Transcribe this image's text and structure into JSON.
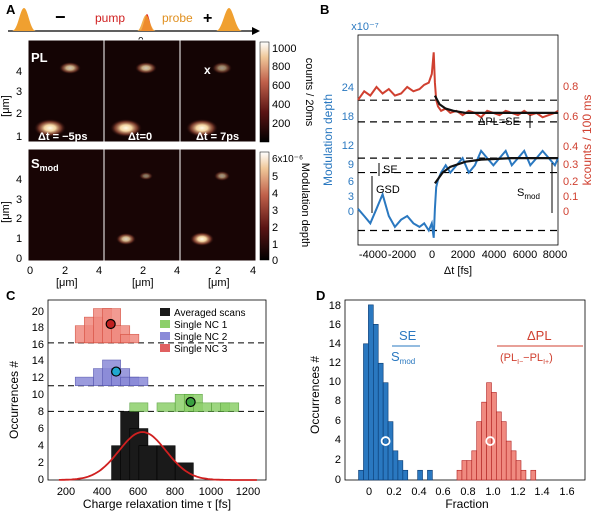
{
  "colors": {
    "orange_pulse": "#f0a030",
    "pump_red": "#e02020",
    "blue": "#2a78c0",
    "red": "#d04030",
    "hist_red": "#f08a80",
    "hist_blue": "#8a8ad8",
    "hist_green": "#8ccf6a",
    "hist_black": "#1a1a1a"
  },
  "panelA": {
    "label": "A",
    "pump": "pump",
    "probe": "probe",
    "minus": "−",
    "plus": "+",
    "zero": "0",
    "pl_label": "PL",
    "smod_label": "S",
    "smod_sub": "mod",
    "x_marker": "x",
    "dt_labels": [
      "Δt = −5ps",
      "Δt=0",
      "Δt = 7ps"
    ],
    "y_axis_label": "[μm]",
    "x_axis_label": "[μm]",
    "y_ticks": [
      "4",
      "3",
      "2",
      "1",
      "0"
    ],
    "x_ticks": [
      "0",
      "2",
      "4",
      "2",
      "4",
      "2",
      "4"
    ],
    "cb_top_ticks": [
      "1000",
      "800",
      "600",
      "400",
      "200"
    ],
    "cb_top_label": "counts / 20ms",
    "cb_bottom_ticks": [
      "6x10⁻⁶",
      "5",
      "4",
      "3",
      "2",
      "1",
      "0"
    ],
    "cb_bottom_label": "Modulation depth"
  },
  "panelB": {
    "label": "B",
    "y_left_label": "Modulation depth",
    "y_right_label": "kcounts / 100 ms",
    "x_label": "Δt [fs]",
    "x_ticks": [
      "-4000",
      "-2000",
      "0",
      "2000",
      "4000",
      "6000",
      "8000"
    ],
    "y_left_exp": "x10⁻⁷",
    "y_left_ticks": [
      "24",
      "18",
      "12",
      "9",
      "6",
      "3",
      "0"
    ],
    "y_right_ticks": [
      "0.8",
      "0.6",
      "0.4",
      "0.3",
      "0.2",
      "0.1",
      "0"
    ],
    "ann_dpl": "ΔPL=SE",
    "ann_se": "SE",
    "ann_gsd": "GSD",
    "ann_smod": "S",
    "ann_smod_sub": "mod"
  },
  "panelC": {
    "label": "C",
    "y_label": "Occurrences #",
    "x_label": "Charge relaxation time τ [fs]",
    "y_ticks": [
      "20",
      "18",
      "16",
      "14",
      "12",
      "10",
      "8",
      "6",
      "4",
      "2",
      "0"
    ],
    "x_ticks": [
      "200",
      "400",
      "600",
      "800",
      "1000",
      "1200"
    ],
    "legend": [
      "Averaged scans",
      "Single NC 1",
      "Single NC 2",
      "Single NC 3"
    ]
  },
  "panelD": {
    "label": "D",
    "y_label": "Occurrences #",
    "x_label": "Fraction",
    "y_ticks": [
      "18",
      "16",
      "14",
      "12",
      "10",
      "8",
      "6",
      "4",
      "2",
      "0"
    ],
    "x_ticks": [
      "0",
      "0.2",
      "0.4",
      "0.6",
      "0.8",
      "1.0",
      "1.2",
      "1.4",
      "1.6"
    ],
    "se_num": "SE",
    "se_den": "S",
    "se_den_sub": "mod",
    "dpl_num": "ΔPL",
    "dpl_den_a": "(PL",
    "dpl_den_sub1": "I−",
    "dpl_den_b": "−PL",
    "dpl_den_sub2": "I+",
    "dpl_den_c": ")"
  },
  "chart_data": [
    {
      "panel": "B",
      "type": "line",
      "x_label": "Δt [fs]",
      "xlim": [
        -5000,
        8000
      ],
      "y_left_label": "Modulation depth",
      "ylim_left": [
        -2,
        27
      ],
      "y_right_label": "kcounts / 100 ms",
      "ylim_right": [
        -0.07,
        0.9
      ],
      "series": [
        {
          "axis": "right",
          "x": [
            -5000,
            -4600,
            -4200,
            -3800,
            -3400,
            -3000,
            -2600,
            -2200,
            -1800,
            -1400,
            -1000,
            -700,
            -400,
            -200,
            -80,
            0,
            80,
            200,
            400,
            700,
            1000,
            1400,
            1800,
            2200,
            2600,
            3000,
            3400,
            3800,
            4200,
            4600,
            5000,
            5400,
            5800,
            6200,
            6600,
            7000,
            7400,
            7800,
            8000
          ],
          "y": [
            0.6,
            0.64,
            0.62,
            0.66,
            0.63,
            0.65,
            0.62,
            0.63,
            0.66,
            0.64,
            0.65,
            0.67,
            0.68,
            0.72,
            0.82,
            0.68,
            0.6,
            0.57,
            0.55,
            0.56,
            0.54,
            0.55,
            0.53,
            0.55,
            0.54,
            0.52,
            0.55,
            0.54,
            0.53,
            0.55,
            0.54,
            0.53,
            0.55,
            0.53,
            0.54,
            0.52,
            0.53,
            0.54,
            0.55
          ]
        },
        {
          "axis": "left",
          "x": [
            -5000,
            -4600,
            -4200,
            -3800,
            -3400,
            -3000,
            -2600,
            -2200,
            -1800,
            -1400,
            -1000,
            -700,
            -400,
            -200,
            -80,
            0,
            80,
            200,
            400,
            700,
            1000,
            1400,
            1800,
            2200,
            2600,
            3000,
            3400,
            3800,
            4200,
            4600,
            5000,
            5400,
            5800,
            6200,
            6600,
            7000,
            7400,
            7800,
            8000
          ],
          "y": [
            3,
            2,
            1,
            3,
            5,
            2,
            0.5,
            1.5,
            2,
            1,
            0.5,
            1,
            0,
            1,
            -1,
            3,
            6,
            7,
            8,
            9,
            8,
            9,
            10,
            8,
            9,
            11,
            10,
            9,
            10,
            11,
            9,
            10,
            11,
            9,
            10,
            11,
            10,
            9,
            10
          ]
        },
        {
          "name": "fit",
          "axis": "left",
          "x": [
            0,
            500,
            1000,
            2000,
            3000,
            5000,
            8000
          ],
          "y": [
            6.5,
            8,
            8.8,
            9.5,
            9.8,
            10,
            10
          ]
        },
        {
          "name": "fit",
          "axis": "right",
          "x": [
            0,
            300,
            700,
            1200,
            2000,
            4000,
            8000
          ],
          "y": [
            0.62,
            0.58,
            0.56,
            0.55,
            0.54,
            0.54,
            0.54
          ]
        }
      ],
      "dashed_levels_left": [
        18,
        15,
        10,
        8,
        0
      ],
      "dashed_levels_right": [
        0.64,
        0.56,
        0.34,
        0.29,
        0
      ]
    },
    {
      "panel": "C",
      "type": "bar",
      "x_label": "Charge relaxation time τ [fs]",
      "y_label": "Occurrences #",
      "xlim": [
        0,
        1200
      ],
      "ylim": [
        0,
        21
      ],
      "bin_width": 100,
      "series": [
        {
          "name": "Averaged scans",
          "offset": 0,
          "bins": [
            [
              400,
              4
            ],
            [
              450,
              8
            ],
            [
              500,
              6
            ],
            [
              550,
              4
            ],
            [
              650,
              4
            ],
            [
              750,
              2
            ]
          ]
        },
        {
          "name": "Single NC 1",
          "offset": 8,
          "bins": [
            [
              500,
              1
            ],
            [
              550,
              0
            ],
            [
              650,
              1
            ],
            [
              750,
              2
            ],
            [
              800,
              2
            ],
            [
              850,
              1
            ],
            [
              950,
              1
            ],
            [
              1000,
              1
            ]
          ],
          "mean": 785
        },
        {
          "name": "Single NC 2",
          "offset": 11,
          "bins": [
            [
              200,
              1
            ],
            [
              300,
              2
            ],
            [
              350,
              3
            ],
            [
              400,
              2
            ],
            [
              450,
              1
            ],
            [
              500,
              1
            ]
          ],
          "mean": 375
        },
        {
          "name": "Single NC 3",
          "offset": 16,
          "bins": [
            [
              200,
              2
            ],
            [
              250,
              3
            ],
            [
              300,
              4
            ],
            [
              350,
              4
            ],
            [
              400,
              2
            ],
            [
              450,
              1
            ]
          ],
          "mean": 345
        }
      ],
      "gauss_fit": {
        "mu": 520,
        "sigma": 130,
        "amplitude": 5.6
      },
      "dashed_levels": [
        8,
        11,
        16
      ]
    },
    {
      "panel": "D",
      "type": "bar",
      "x_label": "Fraction",
      "y_label": "Occurrences #",
      "xlim": [
        -0.15,
        1.8
      ],
      "ylim": [
        0,
        18.5
      ],
      "bin_width": 0.04,
      "series": [
        {
          "name": "SE/Smod",
          "bins": [
            [
              -0.04,
              1
            ],
            [
              0,
              14
            ],
            [
              0.04,
              18
            ],
            [
              0.08,
              16
            ],
            [
              0.12,
              12
            ],
            [
              0.16,
              10
            ],
            [
              0.2,
              6
            ],
            [
              0.24,
              3
            ],
            [
              0.28,
              2
            ],
            [
              0.32,
              1
            ],
            [
              0.44,
              1
            ],
            [
              0.52,
              1
            ]
          ],
          "mean": 0.18
        },
        {
          "name": "ΔPL/(PLI−−PLI+)",
          "bins": [
            [
              0.76,
              1
            ],
            [
              0.8,
              2
            ],
            [
              0.84,
              2
            ],
            [
              0.88,
              3
            ],
            [
              0.92,
              6
            ],
            [
              0.96,
              8
            ],
            [
              1.0,
              10
            ],
            [
              1.04,
              9
            ],
            [
              1.08,
              7
            ],
            [
              1.12,
              6
            ],
            [
              1.16,
              4
            ],
            [
              1.2,
              3
            ],
            [
              1.24,
              2
            ],
            [
              1.28,
              1
            ],
            [
              1.36,
              1
            ]
          ],
          "mean": 1.03
        }
      ]
    }
  ]
}
